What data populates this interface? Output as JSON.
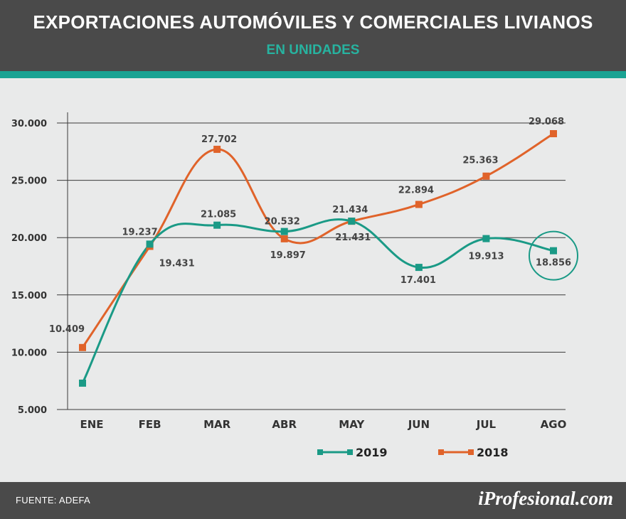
{
  "header": {
    "title": "EXPORTACIONES AUTOMÓVILES Y COMERCIALES LIVIANOS",
    "subtitle": "EN UNIDADES"
  },
  "footer": {
    "source": "FUENTE: ADEFA",
    "brand": "iProfesional.com"
  },
  "colors": {
    "header_bg": "#4a4a4a",
    "accent": "#1aa393",
    "series_2019": "#1a9a86",
    "series_2018": "#e0632a"
  },
  "chart_data": {
    "type": "line",
    "title": "EXPORTACIONES AUTOMÓVILES Y COMERCIALES LIVIANOS",
    "subtitle": "EN UNIDADES",
    "categories": [
      "ENE",
      "FEB",
      "MAR",
      "ABR",
      "MAY",
      "JUN",
      "JUL",
      "AGO"
    ],
    "ylim": [
      5000,
      30000
    ],
    "yticks": [
      {
        "value": 5000,
        "label": "5.000"
      },
      {
        "value": 10000,
        "label": "10.000"
      },
      {
        "value": 15000,
        "label": "15.000"
      },
      {
        "value": 20000,
        "label": "20.000"
      },
      {
        "value": 25000,
        "label": "25.000"
      },
      {
        "value": 30000,
        "label": "30.000"
      }
    ],
    "grid": true,
    "legend": "bottom-center",
    "highlight": {
      "series": 0,
      "category": "AGO"
    },
    "series": [
      {
        "name": "2019",
        "color": "#1a9a86",
        "values": [
          7300,
          19431,
          21085,
          20532,
          21434,
          17401,
          19913,
          18856
        ],
        "labels": [
          "",
          "19.431",
          "21.085",
          "20.532",
          "21.434",
          "17.401",
          "19.913",
          "18.856"
        ]
      },
      {
        "name": "2018",
        "color": "#e0632a",
        "values": [
          10409,
          19237,
          27702,
          19897,
          21431,
          22894,
          25363,
          29068
        ],
        "labels": [
          "10.409",
          "19.237",
          "27.702",
          "19.897",
          "21.431",
          "22.894",
          "25.363",
          "29.068"
        ]
      }
    ]
  }
}
